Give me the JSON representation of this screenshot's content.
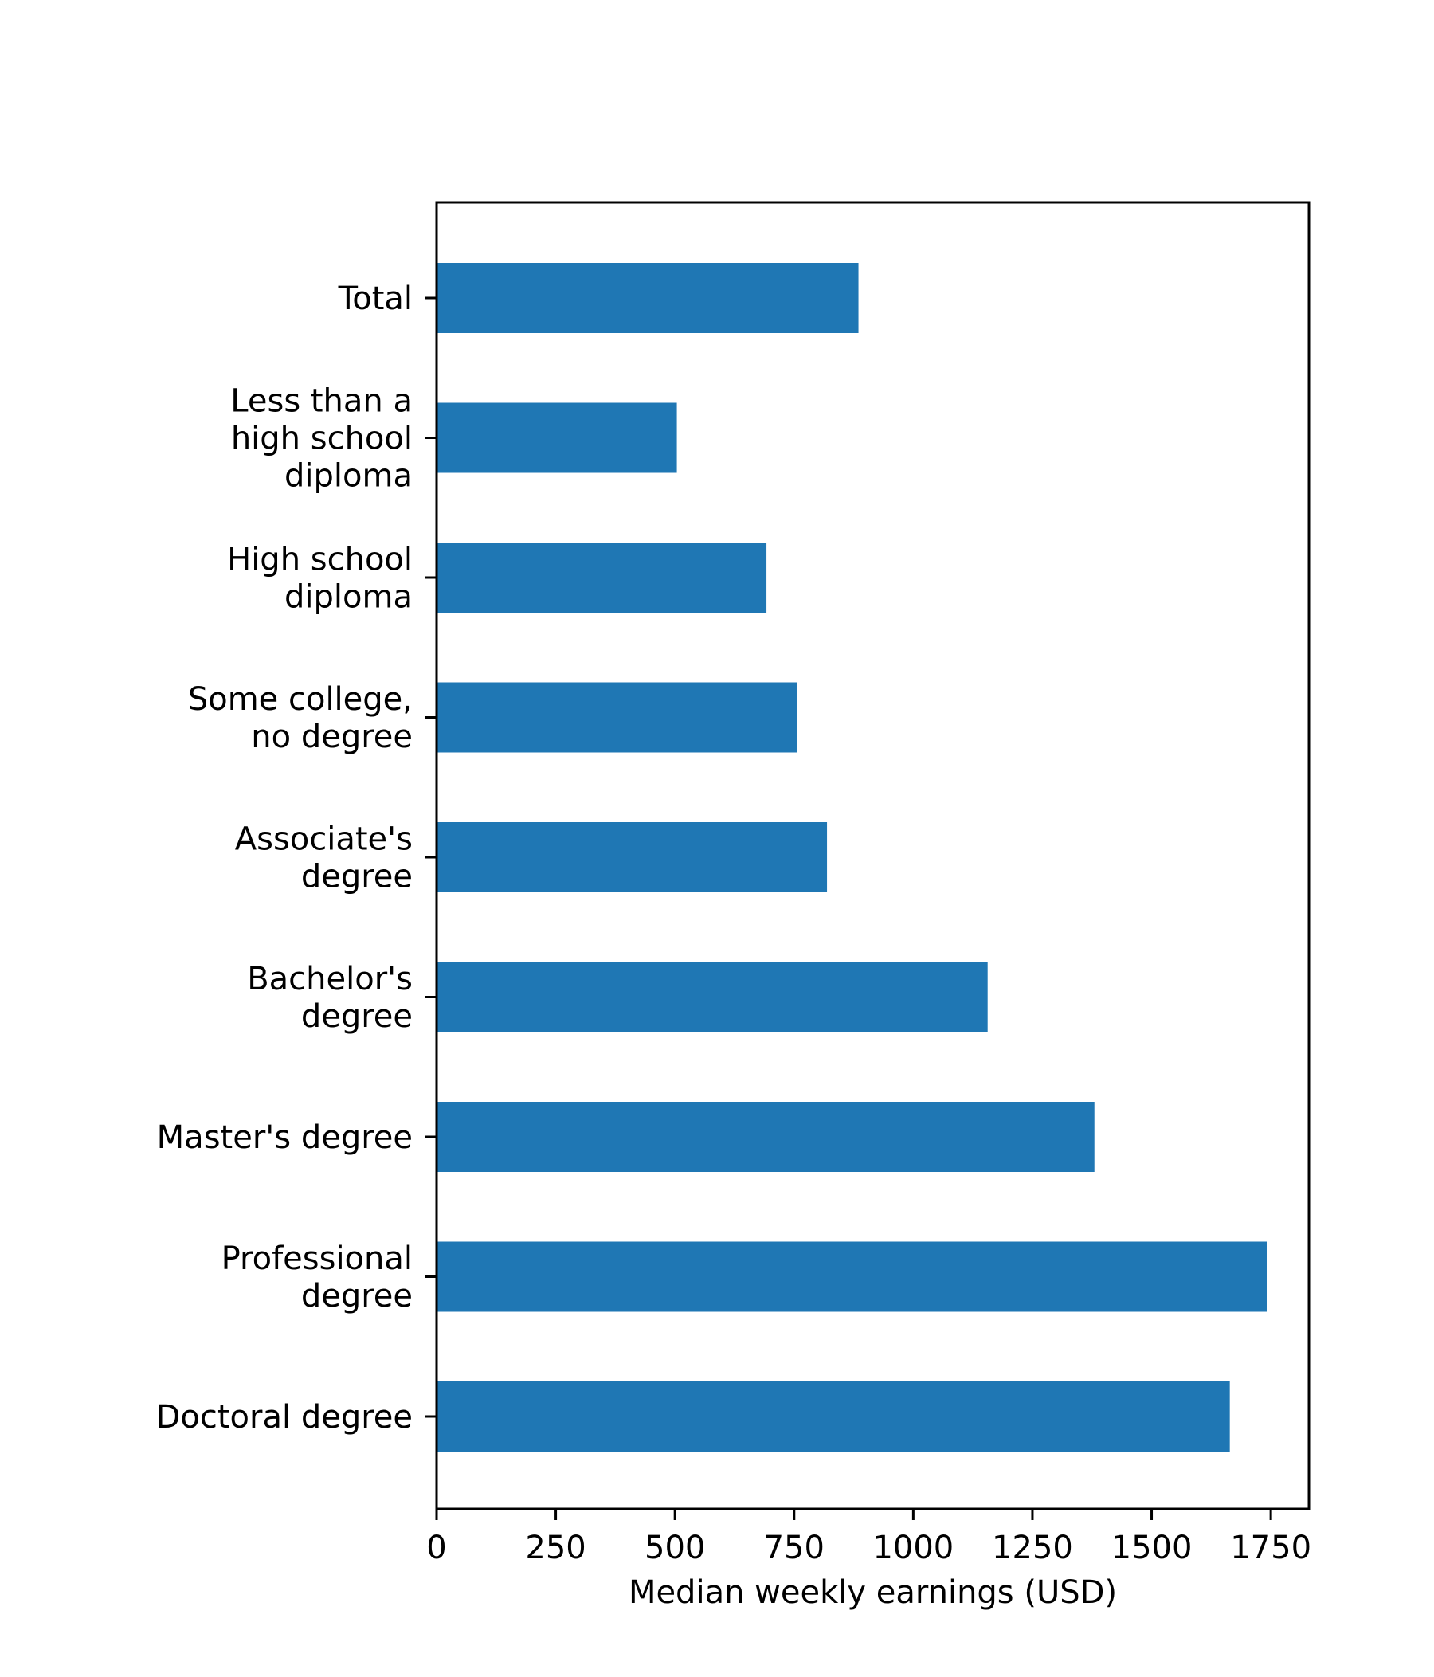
{
  "chart_data": {
    "type": "bar",
    "orientation": "horizontal",
    "categories": [
      [
        "Total"
      ],
      [
        "Less than a",
        "high school",
        "diploma"
      ],
      [
        "High school",
        "diploma"
      ],
      [
        "Some college,",
        "no degree"
      ],
      [
        "Associate's",
        "degree"
      ],
      [
        "Bachelor's",
        "degree"
      ],
      [
        "Master's degree"
      ],
      [
        "Professional",
        "degree"
      ],
      [
        "Doctoral degree"
      ]
    ],
    "values": [
      885,
      504,
      692,
      756,
      819,
      1156,
      1380,
      1743,
      1664
    ],
    "bar_color": "#1f77b4",
    "xlabel": "Median weekly earnings (USD)",
    "ylabel": "",
    "title": "",
    "xlim": [
      0,
      1830
    ],
    "xticks": [
      "0",
      "250",
      "500",
      "750",
      "1000",
      "1250",
      "1500",
      "1750"
    ],
    "grid": false,
    "legend": "none"
  }
}
